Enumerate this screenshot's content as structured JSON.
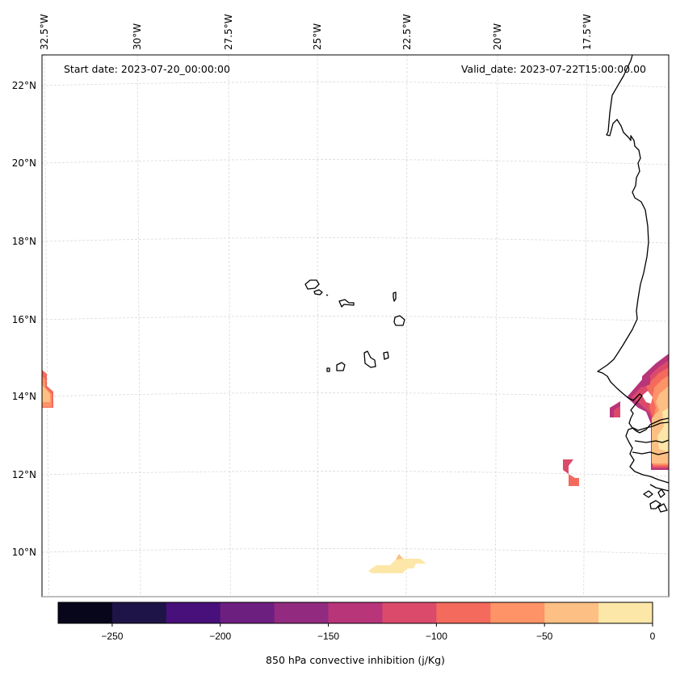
{
  "chart_data": {
    "type": "heatmap",
    "title": "",
    "annotations": {
      "start_date": "Start date: 2023-07-20_00:00:00",
      "valid_date": "Valid_date: 2023-07-22T15:00:00.00"
    },
    "projection": "Lambert Conformal",
    "grid": true,
    "x_axis": {
      "position": "top",
      "ticks": [
        -32.5,
        -30,
        -27.5,
        -25,
        -22.5,
        -20,
        -17.5
      ],
      "tick_labels": [
        "32.5°W",
        "30°W",
        "27.5°W",
        "25°W",
        "22.5°W",
        "20°W",
        "17.5°W"
      ]
    },
    "y_axis": {
      "position": "left",
      "ticks": [
        10,
        12,
        14,
        16,
        18,
        20,
        22
      ],
      "tick_labels": [
        "10°N",
        "12°N",
        "14°N",
        "16°N",
        "18°N",
        "20°N",
        "22°N"
      ]
    },
    "extent": {
      "lon": [
        -32.6,
        -15.5
      ],
      "lat": [
        9.0,
        22.6
      ]
    },
    "colorbar": {
      "label": "850 hPa convective inhibition (j/Kg)",
      "levels": [
        -275,
        -250,
        -225,
        -200,
        -175,
        -150,
        -125,
        -100,
        -75,
        -50,
        -25,
        0
      ],
      "tick_values": [
        -250,
        -200,
        -150,
        -100,
        -50,
        0
      ],
      "tick_labels": [
        "−250",
        "−200",
        "−150",
        "−100",
        "−50",
        "0"
      ],
      "colors": [
        "#07061b",
        "#1f1447",
        "#47107a",
        "#6d1f80",
        "#922b7f",
        "#b8357a",
        "#dc4a6b",
        "#f46a5d",
        "#fd9366",
        "#fdbf84",
        "#fde7a8"
      ],
      "placement": "bottom"
    },
    "regions": [
      {
        "name": "west-edge-patch",
        "approx_center": [
          -32.4,
          14.1
        ],
        "value_range": [
          -100,
          -25
        ]
      },
      {
        "name": "south-patch",
        "approx_center": [
          -23.0,
          9.6
        ],
        "value_range": [
          -50,
          0
        ]
      },
      {
        "name": "senegal-coast-patch",
        "approx_center": [
          -16.0,
          13.5
        ],
        "value_range": [
          -150,
          0
        ]
      },
      {
        "name": "offshore-small-patch-1",
        "approx_center": [
          -17.4,
          13.7
        ],
        "value_range": [
          -150,
          -125
        ]
      },
      {
        "name": "offshore-small-patch-2",
        "approx_center": [
          -18.6,
          11.9
        ],
        "value_range": [
          -125,
          -75
        ]
      }
    ],
    "features": [
      "coastline West Africa",
      "Cape Verde islands"
    ]
  }
}
